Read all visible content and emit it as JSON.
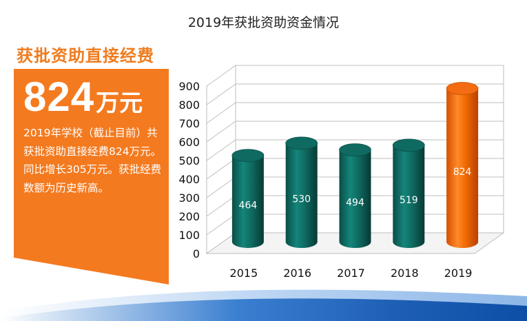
{
  "page": {
    "title": "2019年获批资助资金情况"
  },
  "summary": {
    "heading": "获批资助直接经费",
    "value": "824",
    "unit": "万元",
    "description": "2019年学校（截止目前）共获批资助直接经费824万元。同比增长305万元。获批经费数额为历史新高。"
  },
  "colors": {
    "accent": "#f07c1e",
    "bar": "#0f6b62",
    "bar_highlight": "#f06a00"
  },
  "chart_data": {
    "type": "bar",
    "title": "",
    "xlabel": "",
    "ylabel": "",
    "categories": [
      "2015",
      "2016",
      "2017",
      "2018",
      "2019"
    ],
    "values": [
      464,
      530,
      494,
      519,
      824
    ],
    "data_labels": [
      "464",
      "530",
      "494",
      "519",
      "824"
    ],
    "highlight": "2019",
    "ylim": [
      0,
      900
    ],
    "yticks": [
      "0",
      "100",
      "200",
      "300",
      "400",
      "500",
      "600",
      "700",
      "800",
      "900"
    ],
    "grid": true,
    "legend": "none",
    "style": "3d-cylinder"
  }
}
